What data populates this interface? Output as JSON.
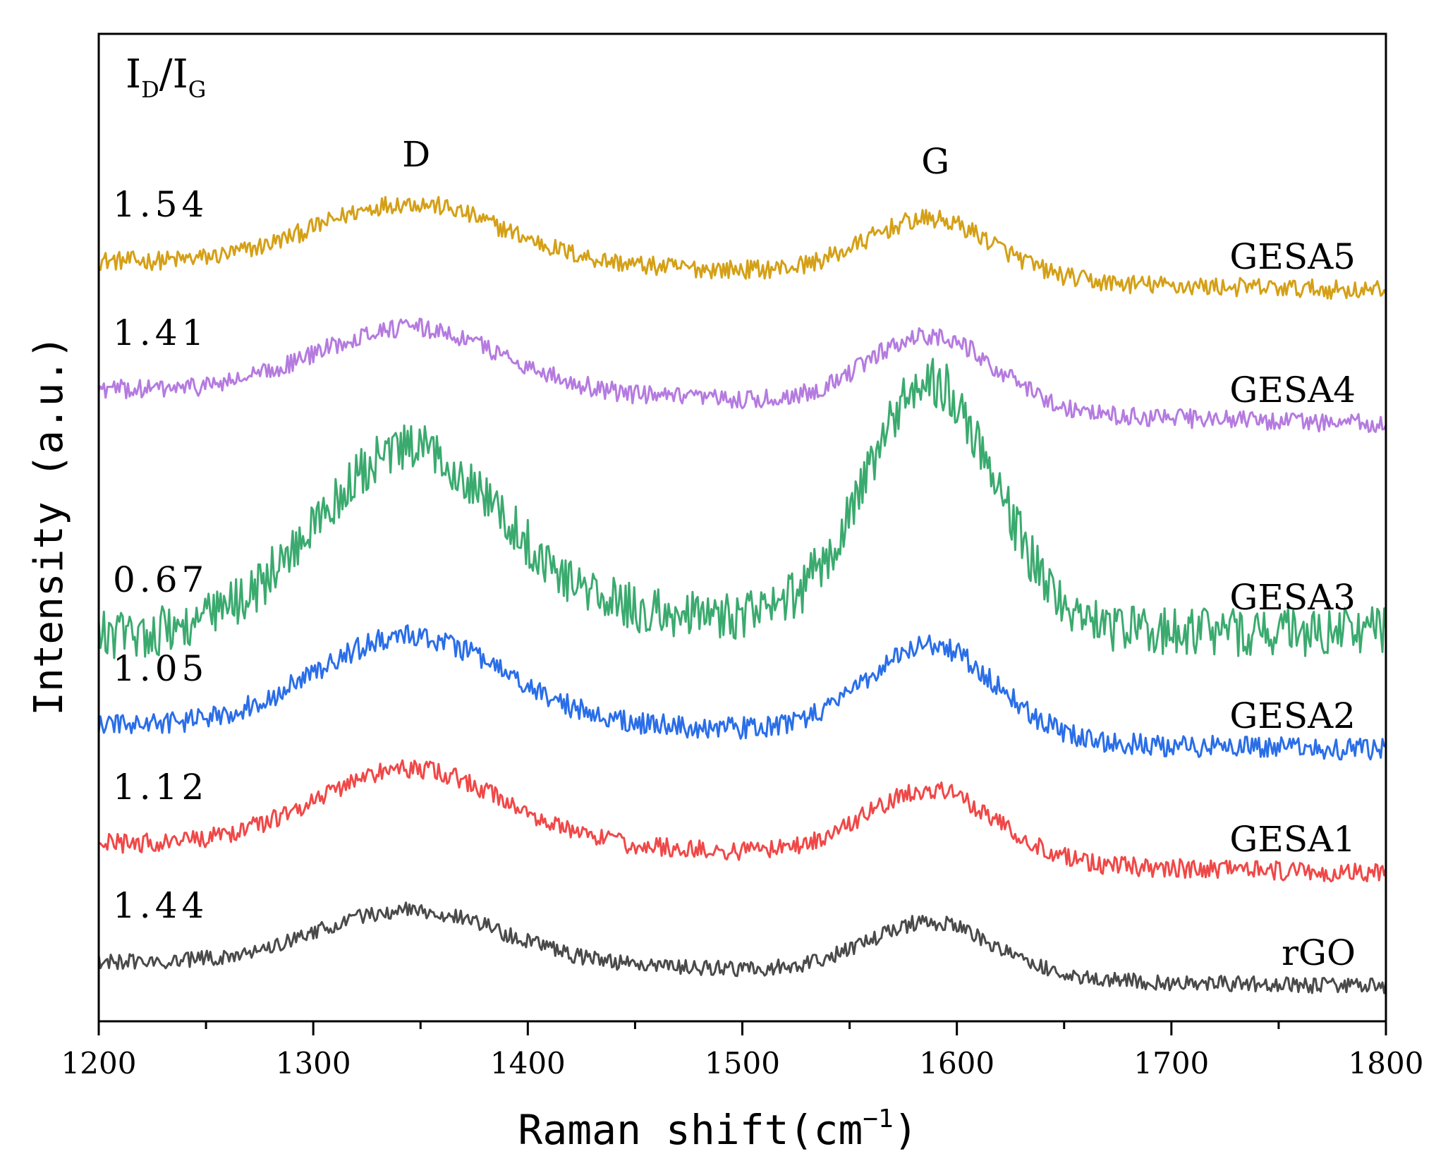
{
  "chart_data": {
    "type": "line",
    "xlabel": "Raman shift(cm",
    "xlabel_sup": "−1",
    "xlabel_close": ")",
    "ylabel": "Intensity (a.u.)",
    "xlim": [
      1200,
      1800
    ],
    "ylim": [
      0,
      1
    ],
    "x_ticks": [
      1200,
      1300,
      1400,
      1500,
      1600,
      1700,
      1800
    ],
    "x_tick_labels": [
      "1200",
      "1300",
      "1400",
      "1500",
      "1600",
      "1700",
      "1800"
    ],
    "ratio_header": {
      "I1": "I",
      "sub1": "D",
      "slash": "/",
      "I2": "I",
      "sub2": "G"
    },
    "peak_labels": [
      {
        "text": "D",
        "x": 1348
      },
      {
        "text": "G",
        "x": 1590
      }
    ],
    "series": [
      {
        "name": "GESA5",
        "ratio": "1.54",
        "color": "#d4a017",
        "baseline_start": 0.77,
        "baseline_end": 0.74,
        "d_amp": 0.065,
        "g_amp": 0.06,
        "noise": 0.006
      },
      {
        "name": "GESA4",
        "ratio": "1.41",
        "color": "#b57be0",
        "baseline_start": 0.64,
        "baseline_end": 0.605,
        "d_amp": 0.07,
        "g_amp": 0.075,
        "noise": 0.006
      },
      {
        "name": "GESA3",
        "ratio": "0.67",
        "color": "#3aaa6e",
        "baseline_start": 0.39,
        "baseline_end": 0.395,
        "d_amp": 0.185,
        "g_amp": 0.25,
        "noise": 0.016
      },
      {
        "name": "GESA2",
        "ratio": "1.05",
        "color": "#2a6ee8",
        "baseline_start": 0.3,
        "baseline_end": 0.275,
        "d_amp": 0.095,
        "g_amp": 0.095,
        "noise": 0.007
      },
      {
        "name": "GESA1",
        "ratio": "1.12",
        "color": "#f04848",
        "baseline_start": 0.18,
        "baseline_end": 0.15,
        "d_amp": 0.082,
        "g_amp": 0.072,
        "noise": 0.006
      },
      {
        "name": "rGO",
        "ratio": "1.44",
        "color": "#4a4a4a",
        "baseline_start": 0.06,
        "baseline_end": 0.035,
        "d_amp": 0.058,
        "g_amp": 0.055,
        "noise": 0.005
      }
    ]
  }
}
